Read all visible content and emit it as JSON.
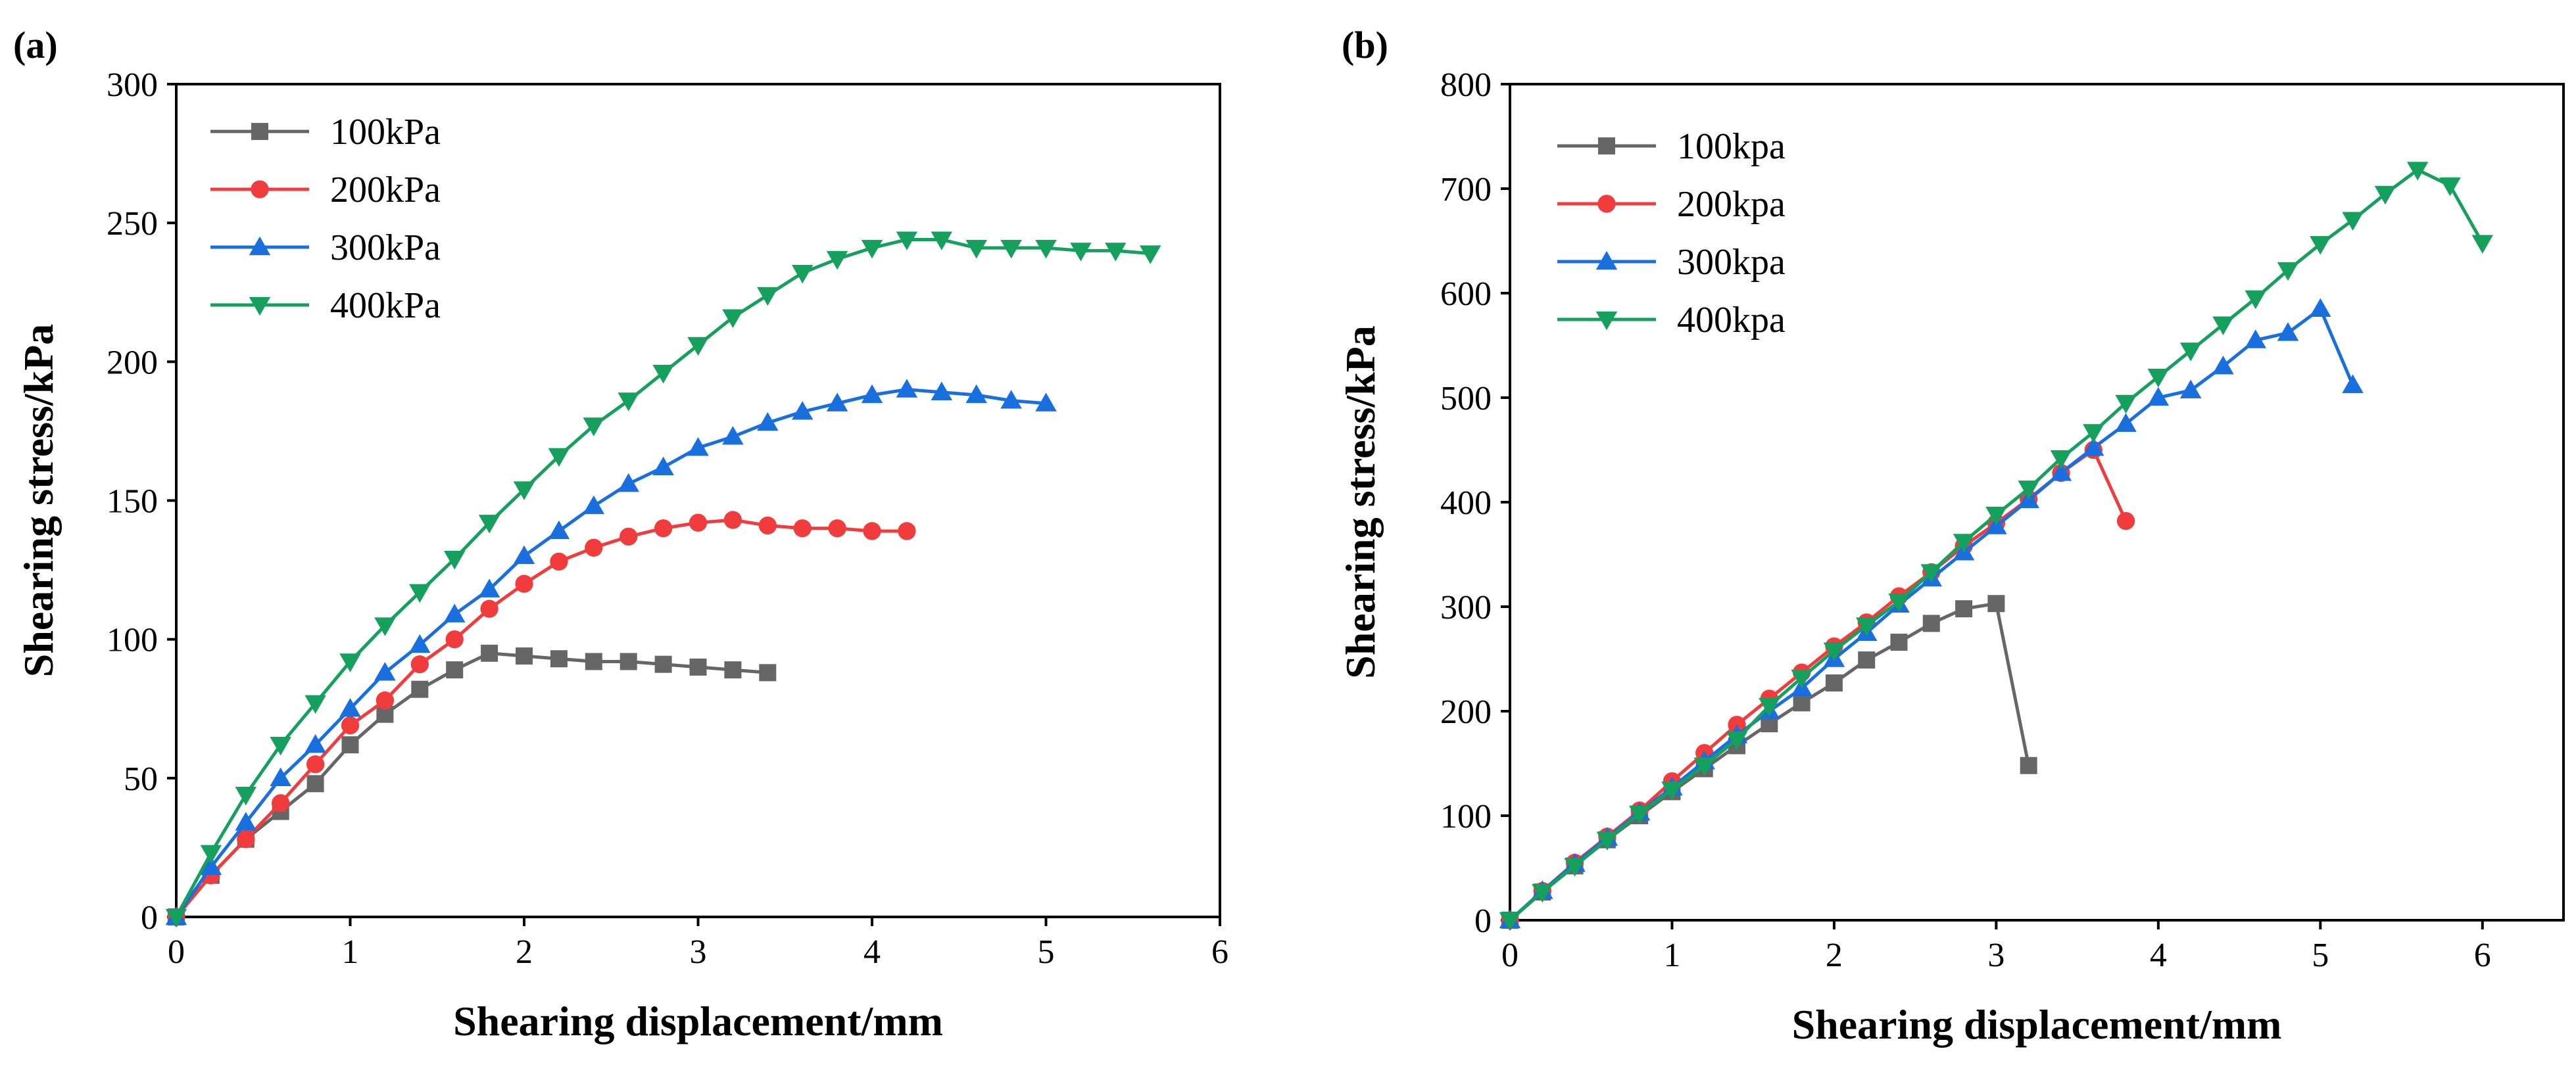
{
  "chart_data": [
    {
      "type": "line",
      "panel_label": "(a)",
      "xlabel": "Shearing displacement/mm",
      "ylabel": "Shearing stress/kPa",
      "xlim": [
        0,
        6
      ],
      "ylim": [
        0,
        300
      ],
      "xticks": [
        0,
        1,
        2,
        3,
        4,
        5,
        6
      ],
      "yticks": [
        0,
        50,
        100,
        150,
        200,
        250,
        300
      ],
      "legend_position": "top-left",
      "series": [
        {
          "name": "100kPa",
          "color": "#666666",
          "marker": "square",
          "x": [
            0,
            0.2,
            0.4,
            0.6,
            0.8,
            1.0,
            1.2,
            1.4,
            1.6,
            1.8,
            2.0,
            2.2,
            2.4,
            2.6,
            2.8,
            3.0,
            3.2,
            3.4
          ],
          "y": [
            0,
            15,
            28,
            38,
            48,
            62,
            73,
            82,
            89,
            95,
            94,
            93,
            92,
            92,
            91,
            90,
            89,
            88
          ]
        },
        {
          "name": "200kPa",
          "color": "#f03c3c",
          "marker": "circle",
          "x": [
            0,
            0.2,
            0.4,
            0.6,
            0.8,
            1.0,
            1.2,
            1.4,
            1.6,
            1.8,
            2.0,
            2.2,
            2.4,
            2.6,
            2.8,
            3.0,
            3.2,
            3.4,
            3.6,
            3.8,
            4.0,
            4.2
          ],
          "y": [
            0,
            15,
            28,
            41,
            55,
            69,
            78,
            91,
            100,
            111,
            120,
            128,
            133,
            137,
            140,
            142,
            143,
            141,
            140,
            140,
            139,
            139
          ]
        },
        {
          "name": "300kPa",
          "color": "#1a6fdf",
          "marker": "triangle-up",
          "x": [
            0,
            0.2,
            0.4,
            0.6,
            0.8,
            1.0,
            1.2,
            1.4,
            1.6,
            1.8,
            2.0,
            2.2,
            2.4,
            2.6,
            2.8,
            3.0,
            3.2,
            3.4,
            3.6,
            3.8,
            4.0,
            4.2,
            4.4,
            4.6,
            4.8,
            5.0
          ],
          "y": [
            0,
            18,
            34,
            50,
            62,
            75,
            88,
            98,
            109,
            118,
            130,
            139,
            148,
            156,
            162,
            169,
            173,
            178,
            182,
            185,
            188,
            190,
            189,
            188,
            186,
            185
          ]
        },
        {
          "name": "400kPa",
          "color": "#16a05d",
          "marker": "triangle-down",
          "x": [
            0,
            0.2,
            0.4,
            0.6,
            0.8,
            1.0,
            1.2,
            1.4,
            1.6,
            1.8,
            2.0,
            2.2,
            2.4,
            2.6,
            2.8,
            3.0,
            3.2,
            3.4,
            3.6,
            3.8,
            4.0,
            4.2,
            4.4,
            4.6,
            4.8,
            5.0,
            5.2,
            5.4,
            5.6
          ],
          "y": [
            0,
            23,
            44,
            62,
            77,
            92,
            105,
            117,
            129,
            142,
            154,
            166,
            177,
            186,
            196,
            206,
            216,
            224,
            232,
            237,
            241,
            244,
            244,
            241,
            241,
            241,
            240,
            240,
            239
          ]
        }
      ]
    },
    {
      "type": "line",
      "panel_label": "(b)",
      "xlabel": "Shearing displacement/mm",
      "ylabel": "Shearing stress/kPa",
      "xlim": [
        0,
        6.5
      ],
      "ylim": [
        0,
        800
      ],
      "xticks": [
        0,
        1,
        2,
        3,
        4,
        5,
        6
      ],
      "yticks": [
        0,
        100,
        200,
        300,
        400,
        500,
        600,
        700,
        800
      ],
      "legend_position": "top-left",
      "series": [
        {
          "name": "100kpa",
          "color": "#666666",
          "marker": "square",
          "x": [
            0,
            0.2,
            0.4,
            0.6,
            0.8,
            1.0,
            1.2,
            1.4,
            1.6,
            1.8,
            2.0,
            2.2,
            2.4,
            2.6,
            2.8,
            3.0,
            3.2
          ],
          "y": [
            0,
            27,
            52,
            77,
            100,
            123,
            145,
            167,
            188,
            208,
            227,
            249,
            266,
            284,
            298,
            303,
            148
          ]
        },
        {
          "name": "200kpa",
          "color": "#f03c3c",
          "marker": "circle",
          "x": [
            0,
            0.2,
            0.4,
            0.6,
            0.8,
            1.0,
            1.2,
            1.4,
            1.6,
            1.8,
            2.0,
            2.2,
            2.4,
            2.6,
            2.8,
            3.0,
            3.2,
            3.4,
            3.6,
            3.8
          ],
          "y": [
            0,
            28,
            55,
            80,
            105,
            133,
            160,
            187,
            212,
            237,
            262,
            285,
            310,
            333,
            358,
            380,
            403,
            428,
            450,
            382
          ]
        },
        {
          "name": "300kpa",
          "color": "#1a6fdf",
          "marker": "triangle-up",
          "x": [
            0,
            0.2,
            0.4,
            0.6,
            0.8,
            1.0,
            1.2,
            1.4,
            1.6,
            1.8,
            2.0,
            2.2,
            2.4,
            2.6,
            2.8,
            3.0,
            3.2,
            3.4,
            3.6,
            3.8,
            4.0,
            4.2,
            4.4,
            4.6,
            4.8,
            5.0,
            5.2
          ],
          "y": [
            0,
            28,
            54,
            79,
            103,
            127,
            152,
            177,
            200,
            222,
            250,
            275,
            302,
            327,
            352,
            377,
            402,
            428,
            452,
            475,
            500,
            507,
            530,
            555,
            562,
            585,
            512
          ]
        },
        {
          "name": "400kpa",
          "color": "#16a05d",
          "marker": "triangle-down",
          "x": [
            0,
            0.2,
            0.4,
            0.6,
            0.8,
            1.0,
            1.2,
            1.4,
            1.6,
            1.8,
            2.0,
            2.2,
            2.4,
            2.6,
            2.8,
            3.0,
            3.2,
            3.4,
            3.6,
            3.8,
            4.0,
            4.2,
            4.4,
            4.6,
            4.8,
            5.0,
            5.2,
            5.4,
            5.6,
            5.8,
            6.0
          ],
          "y": [
            0,
            27,
            52,
            77,
            102,
            125,
            148,
            173,
            205,
            232,
            258,
            282,
            305,
            333,
            362,
            388,
            413,
            442,
            467,
            495,
            520,
            545,
            570,
            595,
            622,
            647,
            670,
            695,
            718,
            703,
            648
          ]
        }
      ]
    }
  ]
}
